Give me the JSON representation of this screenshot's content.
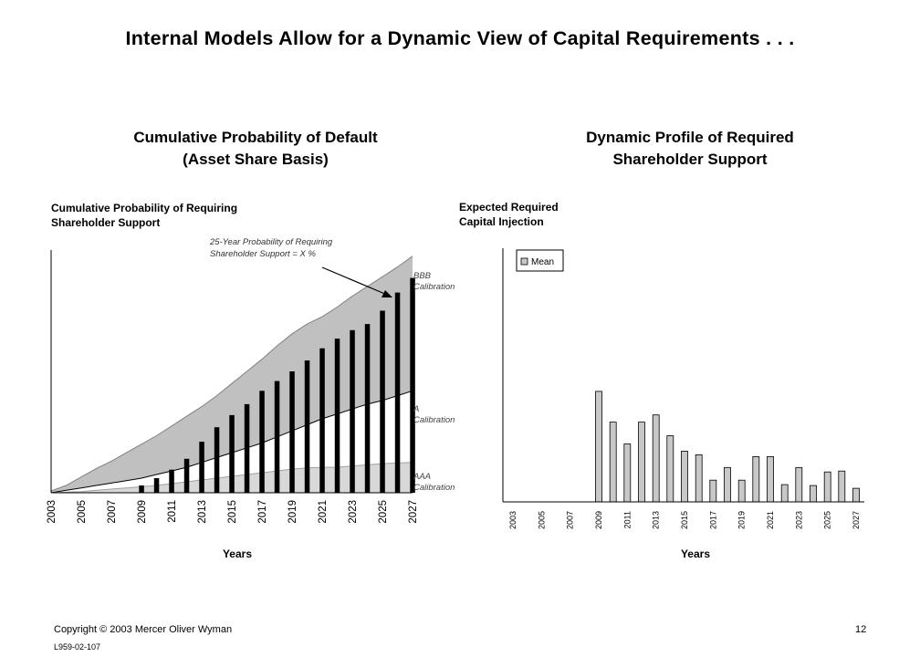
{
  "page": {
    "title": "Internal Models Allow for a Dynamic View of Capital Requirements . . .",
    "copyright": "Copyright © 2003 Mercer Oliver Wyman",
    "doc_id": "L959-02-107",
    "page_number": "12"
  },
  "left": {
    "title_line1": "Cumulative Probability of Default",
    "title_line2": "(Asset Share Basis)",
    "ylabel_line1": "Cumulative Probability of Requiring",
    "ylabel_line2": "Shareholder Support",
    "annotation_line1": "25-Year Probability of Requiring",
    "annotation_line2": "Shareholder Support = X %",
    "xlabel": "Years"
  },
  "right": {
    "title_line1": "Dynamic Profile of Required",
    "title_line2": "Shareholder Support",
    "ylabel_line1": "Expected Required",
    "ylabel_line2": "Capital Injection",
    "xlabel": "Years"
  },
  "chart_data": [
    {
      "type": "area",
      "x": [
        2003,
        2004,
        2005,
        2006,
        2007,
        2008,
        2009,
        2010,
        2011,
        2012,
        2013,
        2014,
        2015,
        2016,
        2017,
        2018,
        2019,
        2020,
        2021,
        2022,
        2023,
        2024,
        2025,
        2026,
        2027
      ],
      "tick_labels": [
        "2003",
        "2005",
        "2007",
        "2009",
        "2011",
        "2013",
        "2015",
        "2017",
        "2019",
        "2021",
        "2023",
        "2025",
        "2027"
      ],
      "series": [
        {
          "name": "BBB Calibration",
          "label_line1": "BBB",
          "label_line2": "Calibration",
          "style": "gray-area",
          "values": [
            1.5,
            6,
            13,
            20,
            26,
            33,
            40,
            47,
            55,
            63,
            71,
            80,
            90,
            100,
            110,
            121,
            131,
            139,
            145,
            153,
            162,
            170,
            178,
            186,
            195
          ]
        },
        {
          "name": "A Calibration",
          "label_line1": "A",
          "label_line2": "Calibration",
          "style": "white-area",
          "values": [
            0,
            2,
            4,
            6,
            8,
            10,
            12,
            15,
            18,
            21,
            25,
            29,
            33,
            37,
            41,
            46,
            51,
            56,
            61,
            65,
            69,
            73,
            76,
            80,
            84
          ]
        },
        {
          "name": "AAA Calibration",
          "label_line1": "AAA",
          "label_line2": "Calibration",
          "style": "light-gray-area",
          "values": [
            0,
            0.5,
            1,
            2,
            3,
            4,
            5,
            6,
            7.5,
            9,
            10.5,
            12,
            13.5,
            15,
            16.5,
            18,
            19.5,
            20.5,
            21,
            21,
            22,
            23,
            24,
            24.5,
            25
          ]
        },
        {
          "name": "bars",
          "style": "black-bar",
          "values": [
            0,
            0,
            0,
            0,
            0,
            0,
            6,
            12,
            19,
            28,
            42,
            54,
            64,
            73,
            84,
            92,
            100,
            109,
            119,
            127,
            134,
            139,
            150,
            165,
            177
          ]
        }
      ],
      "ylim": [
        0,
        200
      ],
      "grid": false
    },
    {
      "type": "bar",
      "x": [
        2003,
        2004,
        2005,
        2006,
        2007,
        2008,
        2009,
        2010,
        2011,
        2012,
        2013,
        2014,
        2015,
        2016,
        2017,
        2018,
        2019,
        2020,
        2021,
        2022,
        2023,
        2024,
        2025,
        2026,
        2027
      ],
      "tick_labels": [
        "2003",
        "2005",
        "2007",
        "2009",
        "2011",
        "2013",
        "2015",
        "2017",
        "2019",
        "2021",
        "2023",
        "2025",
        "2027"
      ],
      "series": [
        {
          "name": "Mean",
          "values": [
            0,
            0,
            0,
            0,
            0,
            0,
            122,
            88,
            64,
            88,
            96,
            73,
            56,
            52,
            24,
            38,
            24,
            50,
            50,
            19,
            38,
            18,
            33,
            34,
            15
          ]
        }
      ],
      "legend": "top-left",
      "ylim": [
        0,
        280
      ],
      "grid": false
    }
  ],
  "colors": {
    "gray_area": "#c0c0c0",
    "light_gray_area": "#d8d8d8",
    "bar_fill": "#000000",
    "mean_bar_fill": "#c8c8c8"
  }
}
